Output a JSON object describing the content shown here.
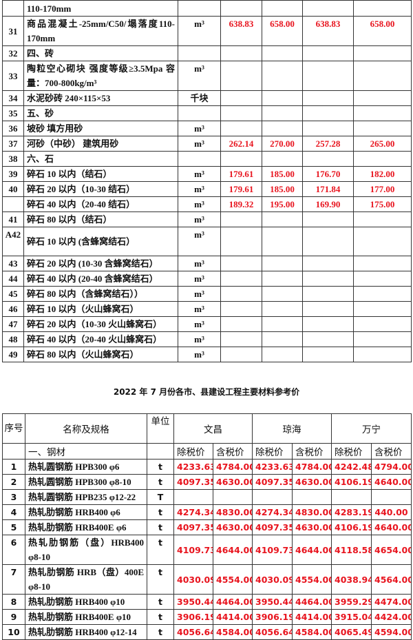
{
  "top_table": {
    "rows": [
      {
        "seq": "",
        "name": "110-170mm",
        "unit": "",
        "v": [
          "",
          "",
          "",
          ""
        ]
      },
      {
        "seq": "31",
        "name": "商品混凝土-25mm/C50/塌落度110-170mm",
        "unit": "m³",
        "v": [
          "638.83",
          "658.00",
          "638.83",
          "658.00"
        ],
        "tall": true
      },
      {
        "seq": "32",
        "name": "四、砖",
        "unit": "",
        "v": [
          "",
          "",
          "",
          ""
        ]
      },
      {
        "seq": "33",
        "name": "陶粒空心砌块 强度等级≥3.5Mpa 容量：700-800kg/m³",
        "unit": "m³",
        "v": [
          "",
          "",
          "",
          ""
        ],
        "tall": true
      },
      {
        "seq": "34",
        "name": "水泥砂砖 240×115×53",
        "unit": "千块",
        "v": [
          "",
          "",
          "",
          ""
        ]
      },
      {
        "seq": "35",
        "name": "五、砂",
        "unit": "",
        "v": [
          "",
          "",
          "",
          ""
        ]
      },
      {
        "seq": "36",
        "name": "坡砂 填方用砂",
        "unit": "m³",
        "v": [
          "",
          "",
          "",
          ""
        ]
      },
      {
        "seq": "37",
        "name": "河砂（中砂） 建筑用砂",
        "unit": "m³",
        "v": [
          "262.14",
          "270.00",
          "257.28",
          "265.00"
        ]
      },
      {
        "seq": "38",
        "name": "六、石",
        "unit": "",
        "v": [
          "",
          "",
          "",
          ""
        ]
      },
      {
        "seq": "39",
        "name": "碎石 10 以内（结石）",
        "unit": "m³",
        "v": [
          "179.61",
          "185.00",
          "176.70",
          "182.00"
        ]
      },
      {
        "seq": "40",
        "name": "碎石 20 以内（10-30 结石）",
        "unit": "m³",
        "v": [
          "179.61",
          "185.00",
          "171.84",
          "177.00"
        ]
      },
      {
        "seq": "",
        "name": "碎石 40 以内（20-40 结石）",
        "unit": "m³",
        "v": [
          "189.32",
          "195.00",
          "169.90",
          "175.00"
        ]
      },
      {
        "seq": "41",
        "name": "碎石 80 以内（结石）",
        "unit": "m³",
        "v": [
          "",
          "",
          "",
          ""
        ]
      },
      {
        "seq": "A42",
        "name": "碎石 10 以内 (含蜂窝结石）",
        "unit": "m³",
        "v": [
          "",
          "",
          "",
          ""
        ],
        "tall": true
      },
      {
        "seq": "43",
        "name": "碎石 20 以内 (10-30 含蜂窝结石）",
        "unit": "m³",
        "v": [
          "",
          "",
          "",
          ""
        ]
      },
      {
        "seq": "44",
        "name": "碎石 40 以内 (20-40 含蜂窝结石）",
        "unit": "m³",
        "v": [
          "",
          "",
          "",
          ""
        ]
      },
      {
        "seq": "45",
        "name": "碎石 80 以内（含蜂窝结石））",
        "unit": "m³",
        "v": [
          "",
          "",
          "",
          ""
        ]
      },
      {
        "seq": "46",
        "name": "碎石 10 以内（火山蜂窝石）",
        "unit": "m³",
        "v": [
          "",
          "",
          "",
          ""
        ]
      },
      {
        "seq": "47",
        "name": "碎石 20 以内（10-30 火山蜂窝石）",
        "unit": "m³",
        "v": [
          "",
          "",
          "",
          ""
        ]
      },
      {
        "seq": "48",
        "name": "碎石 40 以内（20-40 火山蜂窝石）",
        "unit": "m³",
        "v": [
          "",
          "",
          "",
          ""
        ]
      },
      {
        "seq": "49",
        "name": "碎石 80 以内（火山蜂窝石）",
        "unit": "m³",
        "v": [
          "",
          "",
          "",
          ""
        ]
      }
    ]
  },
  "title": "2022 年 7 月份各市、县建设工程主要材料参考价",
  "bottom_table": {
    "headers": {
      "seq": "序号",
      "name": "名称及规格",
      "unit": "单位",
      "regions": [
        "文昌",
        "琼海",
        "万宁"
      ],
      "ex_tax": "除税价",
      "inc_tax": "含税价"
    },
    "section": "一、钢材",
    "rows": [
      {
        "seq": "1",
        "name": "热轧圆钢筋 HPB300 φ6",
        "unit": "t",
        "v": [
          "4233.63",
          "4784.00",
          "4233.63",
          "4784.00",
          "4242.48",
          "4794.00"
        ]
      },
      {
        "seq": "2",
        "name": "热轧圆钢筋 HPB300 φ8-10",
        "unit": "t",
        "v": [
          "4097.35",
          "4630.00",
          "4097.35",
          "4630.00",
          "4106.19",
          "4640.00"
        ]
      },
      {
        "seq": "3",
        "name": "热轧圆钢筋 HPB235 φ12-22",
        "unit": "T",
        "v": [
          "",
          "",
          "",
          "",
          "",
          ""
        ]
      },
      {
        "seq": "4",
        "name": "热轧肋钢筋 HRB400 φ6",
        "unit": "t",
        "v": [
          "4274.34",
          "4830.00",
          "4274.34",
          "4830.00",
          "4283.19",
          "440.00"
        ]
      },
      {
        "seq": "5",
        "name": "热轧肋钢筋 HRB400E φ6",
        "unit": "t",
        "v": [
          "4097.35",
          "4630.00",
          "4097.35",
          "4630.00",
          "4106.19",
          "4640.00"
        ]
      },
      {
        "seq": "6",
        "name": "热轧肋钢筋（盘）HRB400 φ8-10",
        "unit": "t",
        "v": [
          "4109.73",
          "4644.00",
          "4109.73",
          "4644.00",
          "4118.58",
          "4654.00"
        ],
        "tall": true
      },
      {
        "seq": "7",
        "name": "热轧肋钢筋 HRB（盘）400E φ8-10",
        "unit": "t",
        "v": [
          "4030.09",
          "4554.00",
          "4030.09",
          "4554.00",
          "4038.94",
          "4564.00"
        ],
        "tall": true
      },
      {
        "seq": "8",
        "name": "热轧肋钢筋 HRB400 φ10",
        "unit": "t",
        "v": [
          "3950.44",
          "4464.00",
          "3950.44",
          "4464.00",
          "3959.29",
          "4474.00"
        ]
      },
      {
        "seq": "9",
        "name": "热轧肋钢筋 HRB400E φ10",
        "unit": "t",
        "v": [
          "3906.19",
          "4414.00",
          "3906.19",
          "4414.00",
          "3915.04",
          "4424.00"
        ]
      },
      {
        "seq": "10",
        "name": "热轧肋钢筋 HRB400 φ12-14",
        "unit": "t",
        "v": [
          "4056.64",
          "4584.00",
          "4056.64",
          "4584.00",
          "4065.49",
          "4594.00"
        ]
      }
    ]
  },
  "colors": {
    "price": "#e8141e",
    "text": "#111111",
    "border": "#333333"
  }
}
